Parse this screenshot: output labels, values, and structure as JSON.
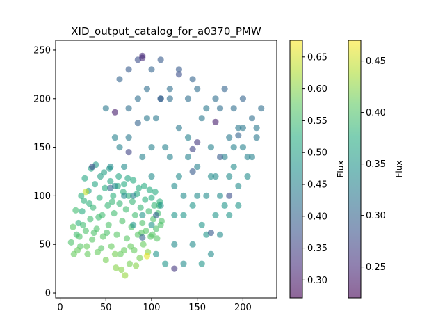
{
  "chart_data": {
    "type": "scatter",
    "title": "XID_output_catalog_for_a0370_PMW",
    "xlabel": "",
    "ylabel": "",
    "xlim": [
      -5,
      237
    ],
    "ylim": [
      -5,
      260
    ],
    "xticks": [
      0,
      50,
      100,
      150,
      200
    ],
    "yticks": [
      0,
      50,
      100,
      150,
      200,
      250
    ],
    "colormap": "viridis",
    "point_alpha": 0.6,
    "grid": false,
    "colorbars": [
      {
        "label": "Flux",
        "range": [
          0.272,
          0.676
        ],
        "ticks": [
          0.3,
          0.35,
          0.4,
          0.45,
          0.5,
          0.55,
          0.6,
          0.65
        ],
        "tick_labels": [
          "0.30",
          "0.35",
          "0.40",
          "0.45",
          "0.50",
          "0.55",
          "0.60",
          "0.65"
        ]
      },
      {
        "label": "Flux",
        "range": [
          0.22,
          0.47
        ],
        "ticks": [
          0.25,
          0.3,
          0.35,
          0.4,
          0.45
        ],
        "tick_labels": [
          "0.25",
          "0.30",
          "0.35",
          "0.40",
          "0.45"
        ]
      }
    ],
    "series": [
      {
        "colorbar": 0,
        "points": [
          [
            12,
            52,
            0.56
          ],
          [
            15,
            40,
            0.58
          ],
          [
            18,
            60,
            0.55
          ],
          [
            20,
            72,
            0.53
          ],
          [
            22,
            48,
            0.57
          ],
          [
            24,
            84,
            0.52
          ],
          [
            26,
            95,
            0.53
          ],
          [
            28,
            64,
            0.56
          ],
          [
            30,
            40,
            0.58
          ],
          [
            31,
            105,
            0.5
          ],
          [
            33,
            76,
            0.55
          ],
          [
            35,
            55,
            0.57
          ],
          [
            36,
            88,
            0.54
          ],
          [
            38,
            112,
            0.51
          ],
          [
            40,
            66,
            0.56
          ],
          [
            41,
            42,
            0.58
          ],
          [
            43,
            98,
            0.53
          ],
          [
            44,
            120,
            0.5
          ],
          [
            46,
            80,
            0.55
          ],
          [
            47,
            58,
            0.57
          ],
          [
            49,
            108,
            0.52
          ],
          [
            50,
            34,
            0.59
          ],
          [
            52,
            90,
            0.54
          ],
          [
            53,
            70,
            0.56
          ],
          [
            55,
            115,
            0.51
          ],
          [
            56,
            48,
            0.58
          ],
          [
            58,
            100,
            0.53
          ],
          [
            59,
            82,
            0.55
          ],
          [
            61,
            26,
            0.6
          ],
          [
            62,
            60,
            0.57
          ],
          [
            63,
            110,
            0.52
          ],
          [
            65,
            92,
            0.54
          ],
          [
            66,
            40,
            0.58
          ],
          [
            68,
            74,
            0.56
          ],
          [
            69,
            104,
            0.53
          ],
          [
            71,
            18,
            0.61
          ],
          [
            72,
            86,
            0.55
          ],
          [
            73,
            56,
            0.57
          ],
          [
            75,
            100,
            0.53
          ],
          [
            76,
            30,
            0.59
          ],
          [
            78,
            68,
            0.56
          ],
          [
            79,
            94,
            0.54
          ],
          [
            81,
            44,
            0.58
          ],
          [
            82,
            80,
            0.55
          ],
          [
            84,
            102,
            0.52
          ],
          [
            85,
            60,
            0.57
          ],
          [
            87,
            36,
            0.59
          ],
          [
            88,
            88,
            0.54
          ],
          [
            90,
            72,
            0.56
          ],
          [
            91,
            50,
            0.58
          ],
          [
            93,
            96,
            0.53
          ],
          [
            94,
            64,
            0.57
          ],
          [
            96,
            42,
            0.6
          ],
          [
            97,
            84,
            0.55
          ],
          [
            99,
            58,
            0.57
          ],
          [
            100,
            98,
            0.52
          ],
          [
            102,
            76,
            0.56
          ],
          [
            103,
            90,
            0.54
          ],
          [
            105,
            66,
            0.56
          ],
          [
            107,
            82,
            0.55
          ],
          [
            109,
            94,
            0.53
          ],
          [
            111,
            74,
            0.56
          ],
          [
            95,
            38,
            0.66
          ],
          [
            28,
            104,
            0.64
          ],
          [
            14,
            68,
            0.57
          ],
          [
            17,
            85,
            0.55
          ],
          [
            23,
            100,
            0.53
          ],
          [
            27,
            118,
            0.51
          ],
          [
            34,
            128,
            0.5
          ],
          [
            39,
            132,
            0.49
          ],
          [
            45,
            46,
            0.57
          ],
          [
            48,
            124,
            0.5
          ],
          [
            54,
            128,
            0.49
          ],
          [
            60,
            40,
            0.59
          ],
          [
            64,
            120,
            0.51
          ],
          [
            67,
            24,
            0.6
          ],
          [
            70,
            112,
            0.52
          ],
          [
            74,
            118,
            0.51
          ],
          [
            77,
            48,
            0.58
          ],
          [
            80,
            116,
            0.52
          ],
          [
            83,
            28,
            0.6
          ],
          [
            86,
            108,
            0.52
          ],
          [
            89,
            62,
            0.57
          ],
          [
            92,
            110,
            0.52
          ],
          [
            98,
            106,
            0.52
          ],
          [
            101,
            60,
            0.57
          ],
          [
            104,
            104,
            0.52
          ],
          [
            106,
            56,
            0.57
          ],
          [
            108,
            90,
            0.54
          ],
          [
            110,
            70,
            0.56
          ],
          [
            19,
            44,
            0.58
          ],
          [
            21,
            58,
            0.56
          ],
          [
            25,
            70,
            0.55
          ],
          [
            29,
            48,
            0.58
          ],
          [
            32,
            92,
            0.53
          ],
          [
            37,
            62,
            0.56
          ],
          [
            42,
            78,
            0.55
          ],
          [
            51,
            62,
            0.56
          ],
          [
            57,
            94,
            0.54
          ],
          [
            70,
            44,
            0.58
          ]
        ]
      },
      {
        "colorbar": 1,
        "points": [
          [
            70,
            130,
            0.34
          ],
          [
            75,
            160,
            0.32
          ],
          [
            80,
            100,
            0.33
          ],
          [
            85,
            175,
            0.3
          ],
          [
            90,
            140,
            0.33
          ],
          [
            95,
            210,
            0.31
          ],
          [
            100,
            120,
            0.34
          ],
          [
            105,
            180,
            0.32
          ],
          [
            110,
            90,
            0.35
          ],
          [
            115,
            150,
            0.33
          ],
          [
            120,
            200,
            0.31
          ],
          [
            125,
            110,
            0.34
          ],
          [
            130,
            170,
            0.32
          ],
          [
            135,
            80,
            0.35
          ],
          [
            140,
            140,
            0.33
          ],
          [
            145,
            220,
            0.3
          ],
          [
            150,
            100,
            0.34
          ],
          [
            155,
            180,
            0.32
          ],
          [
            160,
            60,
            0.35
          ],
          [
            165,
            150,
            0.33
          ],
          [
            170,
            120,
            0.34
          ],
          [
            175,
            190,
            0.31
          ],
          [
            180,
            90,
            0.35
          ],
          [
            185,
            160,
            0.32
          ],
          [
            190,
            130,
            0.34
          ],
          [
            195,
            170,
            0.32
          ],
          [
            200,
            150,
            0.33
          ],
          [
            205,
            120,
            0.34
          ],
          [
            210,
            180,
            0.31
          ],
          [
            215,
            160,
            0.32
          ],
          [
            220,
            190,
            0.31
          ],
          [
            60,
            160,
            0.33
          ],
          [
            55,
            130,
            0.34
          ],
          [
            50,
            190,
            0.32
          ],
          [
            65,
            220,
            0.3
          ],
          [
            75,
            230,
            0.29
          ],
          [
            85,
            240,
            0.28
          ],
          [
            90,
            244,
            0.25
          ],
          [
            100,
            230,
            0.3
          ],
          [
            110,
            240,
            0.29
          ],
          [
            120,
            210,
            0.31
          ],
          [
            130,
            230,
            0.29
          ],
          [
            140,
            200,
            0.31
          ],
          [
            150,
            210,
            0.31
          ],
          [
            160,
            190,
            0.32
          ],
          [
            170,
            200,
            0.31
          ],
          [
            180,
            210,
            0.3
          ],
          [
            190,
            190,
            0.31
          ],
          [
            200,
            170,
            0.32
          ],
          [
            205,
            140,
            0.33
          ],
          [
            195,
            110,
            0.34
          ],
          [
            185,
            80,
            0.35
          ],
          [
            175,
            60,
            0.34
          ],
          [
            165,
            40,
            0.34
          ],
          [
            155,
            30,
            0.35
          ],
          [
            145,
            50,
            0.34
          ],
          [
            135,
            30,
            0.34
          ],
          [
            125,
            50,
            0.34
          ],
          [
            115,
            30,
            0.35
          ],
          [
            105,
            40,
            0.35
          ],
          [
            140,
            160,
            0.33
          ],
          [
            130,
            120,
            0.34
          ],
          [
            150,
            130,
            0.33
          ],
          [
            160,
            100,
            0.34
          ],
          [
            170,
            80,
            0.35
          ],
          [
            180,
            140,
            0.33
          ],
          [
            190,
            150,
            0.33
          ],
          [
            120,
            140,
            0.33
          ],
          [
            110,
            200,
            0.31
          ],
          [
            100,
            150,
            0.33
          ],
          [
            95,
            180,
            0.32
          ],
          [
            85,
            200,
            0.31
          ],
          [
            75,
            190,
            0.31
          ],
          [
            65,
            150,
            0.33
          ],
          [
            60,
            110,
            0.34
          ],
          [
            70,
            100,
            0.34
          ],
          [
            80,
            70,
            0.35
          ],
          [
            90,
            80,
            0.35
          ],
          [
            100,
            70,
            0.35
          ],
          [
            125,
            80,
            0.35
          ],
          [
            135,
            100,
            0.34
          ],
          [
            145,
            90,
            0.35
          ],
          [
            155,
            70,
            0.35
          ],
          [
            165,
            120,
            0.34
          ],
          [
            175,
            100,
            0.34
          ],
          [
            185,
            120,
            0.34
          ],
          [
            195,
            90,
            0.35
          ],
          [
            200,
            200,
            0.3
          ],
          [
            210,
            140,
            0.33
          ],
          [
            215,
            170,
            0.32
          ],
          [
            170,
            176,
            0.24
          ],
          [
            150,
            155,
            0.26
          ],
          [
            125,
            25,
            0.26
          ],
          [
            60,
            186,
            0.24
          ],
          [
            75,
            145,
            0.27
          ],
          [
            130,
            225,
            0.28
          ],
          [
            175,
            140,
            0.29
          ],
          [
            165,
            62,
            0.29
          ],
          [
            145,
            148,
            0.27
          ],
          [
            35,
            130,
            0.28
          ],
          [
            90,
            242,
            0.25
          ],
          [
            55,
            108,
            0.3
          ],
          [
            110,
            200,
            0.29
          ],
          [
            145,
            125,
            0.29
          ],
          [
            195,
            162,
            0.3
          ],
          [
            185,
            100,
            0.28
          ],
          [
            105,
            80,
            0.3
          ],
          [
            90,
            57,
            0.3
          ]
        ]
      }
    ]
  }
}
